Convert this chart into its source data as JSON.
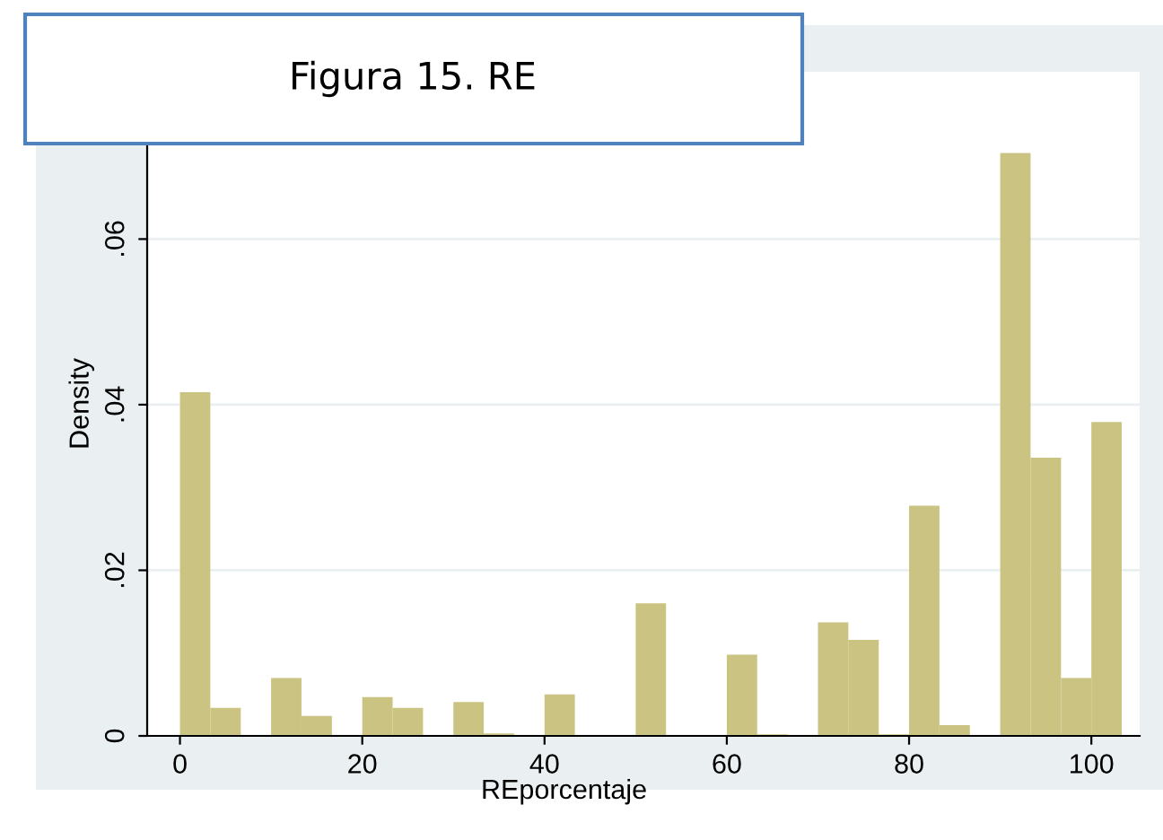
{
  "chart_data": {
    "type": "histogram",
    "title": "Figura 15. RE",
    "xlabel": "REporcentaje",
    "ylabel": "Density",
    "bins": [
      0,
      3.33,
      6.67,
      10,
      13.33,
      16.67,
      20,
      23.33,
      26.67,
      30,
      33.33,
      36.67,
      40,
      43.33,
      46.67,
      50,
      53.33,
      56.67,
      60,
      63.33,
      66.67,
      70,
      73.33,
      76.67,
      80,
      83.33,
      86.67,
      90,
      93.33,
      96.67,
      100,
      103.33
    ],
    "values": [
      0.0415,
      0.0034,
      0,
      0.007,
      0.0024,
      0,
      0.0047,
      0.0034,
      0,
      0.0041,
      0.0003,
      0,
      0.005,
      0,
      0,
      0.016,
      0,
      0,
      0.0098,
      0.0002,
      0,
      0.0137,
      0.0116,
      0.0002,
      0.0278,
      0.0013,
      0,
      0.0704,
      0.0336,
      0.007,
      0.0379
    ],
    "color": "#cbc381",
    "xlim": [
      -3.6,
      105.3
    ],
    "xticks": [
      0,
      20,
      40,
      60,
      80,
      100
    ],
    "ylim": [
      0,
      0.0802
    ],
    "yticks": [
      {
        "value": 0,
        "label": "0"
      },
      {
        "value": 0.02,
        "label": ".02"
      },
      {
        "value": 0.04,
        "label": ".04"
      },
      {
        "value": 0.06,
        "label": ".06"
      }
    ],
    "grid": "y"
  }
}
